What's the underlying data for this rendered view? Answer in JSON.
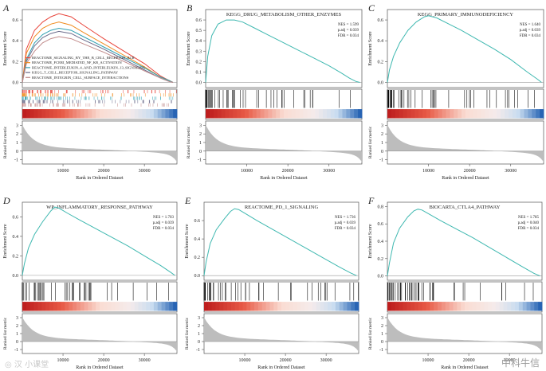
{
  "figure": {
    "watermark_left": "◎ 汉 小课堂",
    "watermark_right": "中科牛信"
  },
  "chart_data": [
    {
      "type": "line",
      "panel": "A",
      "title": "",
      "ylabel": "Enrichment Score",
      "ylabel_bottom": "Ranked list metric",
      "xlabel": "Rank in Ordered Dataset",
      "ylim": [
        -0.05,
        0.7
      ],
      "yticks": [
        0.0,
        0.2,
        0.4,
        0.6
      ],
      "xlim": [
        0,
        38000
      ],
      "xticks": [
        10000,
        20000,
        30000
      ],
      "metric_ylim": [
        -1.5,
        3.5
      ],
      "metric_yticks": [
        -1,
        0,
        1,
        2,
        3
      ],
      "stats": [],
      "series": [
        {
          "name": "REACTOME_SIGNALING_BY_THE_B_CELL_RECEPTOR_BCR",
          "color": "#e8443a",
          "x": [
            0,
            1000,
            3000,
            5000,
            7000,
            9000,
            12000,
            15000,
            20000,
            25000,
            30000,
            34000,
            36000,
            37000
          ],
          "values": [
            0,
            0.32,
            0.5,
            0.58,
            0.63,
            0.66,
            0.63,
            0.55,
            0.42,
            0.3,
            0.18,
            0.06,
            0.02,
            0
          ]
        },
        {
          "name": "REACTOME_FCERI_MEDIATED_NF_KB_ACTIVATION",
          "color": "#f08a1c",
          "x": [
            0,
            1000,
            3000,
            5000,
            7000,
            9000,
            12000,
            15000,
            20000,
            25000,
            30000,
            34000,
            36000,
            37000
          ],
          "values": [
            0,
            0.28,
            0.44,
            0.52,
            0.56,
            0.58,
            0.55,
            0.48,
            0.37,
            0.26,
            0.15,
            0.05,
            0.02,
            0
          ]
        },
        {
          "name": "REACTOME_INTERLEUKIN_4_AND_INTERLEUKIN_13_SIGNALING",
          "color": "#2e9fb0",
          "x": [
            0,
            1000,
            3000,
            5000,
            7000,
            9000,
            12000,
            15000,
            20000,
            25000,
            30000,
            34000,
            36000,
            37000
          ],
          "values": [
            0,
            0.22,
            0.38,
            0.46,
            0.5,
            0.52,
            0.5,
            0.44,
            0.34,
            0.24,
            0.14,
            0.05,
            0.02,
            0
          ]
        },
        {
          "name": "KEGG_T_CELL_RECEPTOR_SIGNALING_PATHWAY",
          "color": "#6a6a8a",
          "x": [
            0,
            1000,
            3000,
            5000,
            7000,
            9000,
            12000,
            15000,
            20000,
            25000,
            30000,
            34000,
            36000,
            37000
          ],
          "values": [
            0,
            0.2,
            0.35,
            0.43,
            0.47,
            0.49,
            0.47,
            0.41,
            0.32,
            0.22,
            0.12,
            0.04,
            0.01,
            0
          ]
        },
        {
          "name": "REACTOME_INTEGRIN_CELL_SURFACE_INTERACTIONS",
          "color": "#c08a8a",
          "x": [
            0,
            1000,
            3000,
            5000,
            7000,
            9000,
            12000,
            15000,
            20000,
            25000,
            30000,
            34000,
            36000,
            37000
          ],
          "values": [
            0,
            0.18,
            0.3,
            0.38,
            0.42,
            0.44,
            0.42,
            0.37,
            0.29,
            0.2,
            0.11,
            0.04,
            0.01,
            0
          ]
        }
      ]
    },
    {
      "type": "line",
      "panel": "B",
      "title": "KEGG_DRUG_METABOLISM_OTHER_ENZYMES",
      "ylabel": "Enrichment Score",
      "ylabel_bottom": "Ranked list metric",
      "xlabel": "Rank in Ordered Dataset",
      "ylim": [
        -0.05,
        0.7
      ],
      "yticks": [
        0.0,
        0.1,
        0.2,
        0.3,
        0.4,
        0.5,
        0.6
      ],
      "xlim": [
        0,
        38000
      ],
      "xticks": [
        10000,
        20000,
        30000
      ],
      "metric_ylim": [
        -1.5,
        3.5
      ],
      "metric_yticks": [
        -1,
        0,
        1,
        2,
        3
      ],
      "stats": [
        "NES = 1.599",
        "p.adj = 0.039",
        "FDR = 0.034"
      ],
      "series": [
        {
          "name": "ES",
          "color": "#3fb8b0",
          "x": [
            0,
            500,
            1500,
            3000,
            5000,
            7000,
            9000,
            12000,
            15000,
            18000,
            22000,
            26000,
            30000,
            33000,
            35000,
            36500,
            37500
          ],
          "values": [
            0,
            0.25,
            0.45,
            0.56,
            0.6,
            0.6,
            0.58,
            0.52,
            0.46,
            0.4,
            0.32,
            0.24,
            0.16,
            0.09,
            0.04,
            0.01,
            0
          ]
        }
      ]
    },
    {
      "type": "line",
      "panel": "C",
      "title": "KEGG_PRIMARY_IMMUNODEFICIENCY",
      "ylabel": "Enrichment Score",
      "ylabel_bottom": "Ranked list metric",
      "xlabel": "Rank in Ordered Dataset",
      "ylim": [
        -0.05,
        0.7
      ],
      "yticks": [
        0.0,
        0.2,
        0.4,
        0.6
      ],
      "xlim": [
        0,
        38000
      ],
      "xticks": [
        10000,
        20000,
        30000
      ],
      "metric_ylim": [
        -1.5,
        3.5
      ],
      "metric_yticks": [
        -1,
        0,
        1,
        2,
        3
      ],
      "stats": [
        "NES = 1.640",
        "p.adj = 0.039",
        "FDR = 0.034"
      ],
      "series": [
        {
          "name": "ES",
          "color": "#3fb8b0",
          "x": [
            0,
            500,
            1500,
            3000,
            5000,
            7000,
            9000,
            10000,
            12000,
            15000,
            18000,
            22000,
            26000,
            30000,
            34000,
            36500,
            37500
          ],
          "values": [
            0,
            0.12,
            0.25,
            0.38,
            0.5,
            0.58,
            0.63,
            0.64,
            0.62,
            0.56,
            0.5,
            0.41,
            0.32,
            0.22,
            0.1,
            0.03,
            0
          ]
        }
      ]
    },
    {
      "type": "line",
      "panel": "D",
      "title": "WP_INFLAMMATORY_RESPONSE_PATHWAY",
      "ylabel": "Enrichment Score",
      "ylabel_bottom": "Ranked list metric",
      "xlabel": "Rank in Ordered Dataset",
      "ylim": [
        -0.05,
        0.75
      ],
      "yticks": [
        0.0,
        0.2,
        0.4,
        0.6
      ],
      "xlim": [
        0,
        38000
      ],
      "xticks": [
        10000,
        20000,
        30000
      ],
      "metric_ylim": [
        -1.5,
        3.5
      ],
      "metric_yticks": [
        -1,
        0,
        1,
        2,
        3
      ],
      "stats": [
        "NES = 1.703",
        "p.adj = 0.039",
        "FDR = 0.034"
      ],
      "series": [
        {
          "name": "ES",
          "color": "#3fb8b0",
          "x": [
            0,
            500,
            1500,
            3000,
            5000,
            7000,
            8000,
            9000,
            11000,
            14000,
            18000,
            22000,
            26000,
            30000,
            34000,
            36500,
            37500
          ],
          "values": [
            0,
            0.12,
            0.28,
            0.42,
            0.55,
            0.66,
            0.7,
            0.69,
            0.64,
            0.57,
            0.48,
            0.39,
            0.3,
            0.2,
            0.1,
            0.03,
            0
          ]
        }
      ]
    },
    {
      "type": "line",
      "panel": "E",
      "title": "REACTOME_PD_1_SIGNALING",
      "ylabel": "Enrichment Score",
      "ylabel_bottom": "Ranked list metric",
      "xlabel": "Rank in Ordered Dataset",
      "ylim": [
        -0.05,
        0.8
      ],
      "yticks": [
        0.0,
        0.2,
        0.4,
        0.6
      ],
      "xlim": [
        0,
        38000
      ],
      "xticks": [
        10000,
        20000,
        30000
      ],
      "metric_ylim": [
        -1.5,
        3.5
      ],
      "metric_yticks": [
        -1,
        0,
        1,
        2,
        3
      ],
      "stats": [
        "NES = 1.736",
        "p.adj = 0.039",
        "FDR = 0.034"
      ],
      "series": [
        {
          "name": "ES",
          "color": "#3fb8b0",
          "x": [
            0,
            500,
            1500,
            3000,
            5000,
            6500,
            7500,
            8500,
            10000,
            13000,
            17000,
            21000,
            25000,
            29000,
            33000,
            36000,
            37500
          ],
          "values": [
            0,
            0.15,
            0.35,
            0.5,
            0.62,
            0.7,
            0.73,
            0.72,
            0.68,
            0.6,
            0.5,
            0.4,
            0.3,
            0.2,
            0.1,
            0.03,
            0
          ]
        }
      ]
    },
    {
      "type": "line",
      "panel": "F",
      "title": "BIOCARTA_CTLA4_PATHWAY",
      "ylabel": "Enrichment Score",
      "ylabel_bottom": "Ranked list metric",
      "xlabel": "Rank in Ordered Dataset",
      "ylim": [
        -0.05,
        0.85
      ],
      "yticks": [
        0.0,
        0.2,
        0.4,
        0.6,
        0.8
      ],
      "xlim": [
        0,
        38000
      ],
      "xticks": [
        10000,
        20000,
        30000
      ],
      "metric_ylim": [
        -1.5,
        3.5
      ],
      "metric_yticks": [
        -1,
        0,
        1,
        2,
        3
      ],
      "stats": [
        "NES = 1.785",
        "p.adj = 0.040",
        "FDR = 0.034"
      ],
      "series": [
        {
          "name": "ES",
          "color": "#3fb8b0",
          "x": [
            0,
            500,
            1500,
            3000,
            5000,
            6500,
            7500,
            8500,
            10000,
            13000,
            17000,
            21000,
            25000,
            29000,
            33000,
            36000,
            37500
          ],
          "values": [
            0,
            0.15,
            0.38,
            0.55,
            0.68,
            0.75,
            0.77,
            0.76,
            0.72,
            0.64,
            0.54,
            0.44,
            0.33,
            0.22,
            0.11,
            0.03,
            0
          ]
        }
      ]
    }
  ]
}
